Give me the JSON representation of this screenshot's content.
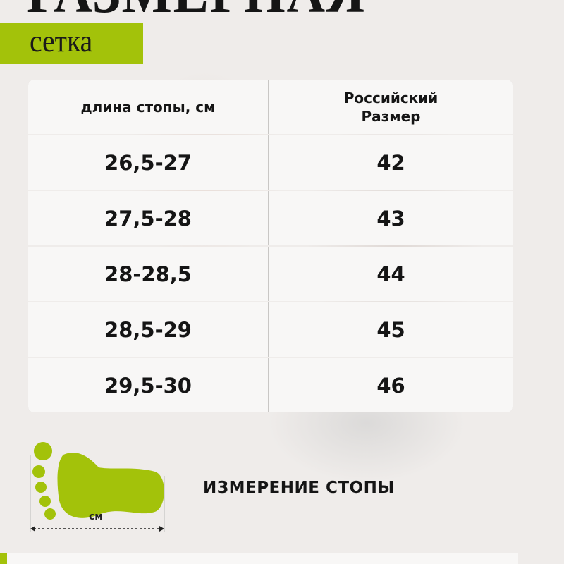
{
  "title": "РАЗМЕРНАЯ",
  "subtitle": "сетка",
  "accent_color": "#a3c20a",
  "table": {
    "headers": [
      "длина стопы, см",
      "Российский Размер"
    ],
    "rows": [
      [
        "26,5-27",
        "42"
      ],
      [
        "27,5-28",
        "43"
      ],
      [
        "28-28,5",
        "44"
      ],
      [
        "28,5-29",
        "45"
      ],
      [
        "29,5-30",
        "46"
      ]
    ]
  },
  "measure": {
    "icon": "foot-measure-icon",
    "unit_label": "см",
    "label": "ИЗМЕРЕНИЕ СТОПЫ"
  }
}
